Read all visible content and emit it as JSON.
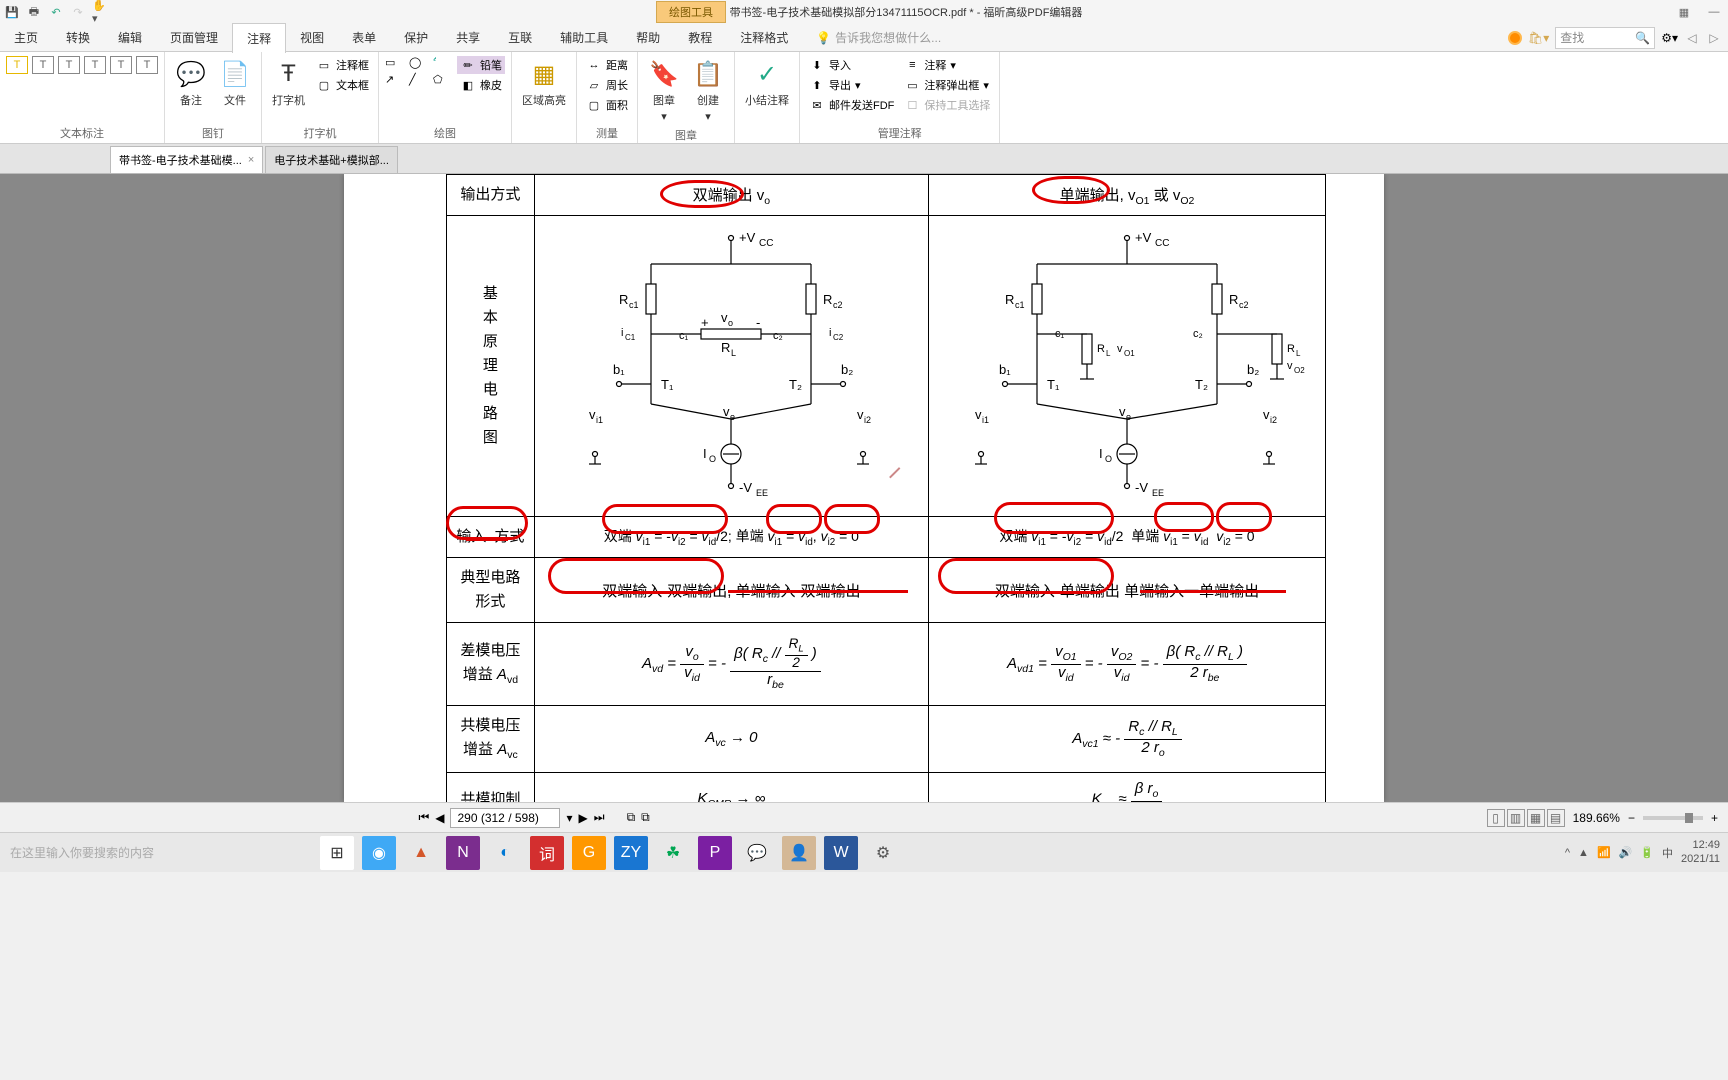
{
  "app": {
    "title": "带书签-电子技术基础模拟部分13471115OCR.pdf * - 福昕高级PDF编辑器",
    "context_tab": "绘图工具"
  },
  "menu": {
    "items": [
      "主页",
      "转换",
      "编辑",
      "页面管理",
      "注释",
      "视图",
      "表单",
      "保护",
      "共享",
      "互联",
      "辅助工具",
      "帮助",
      "教程",
      "注释格式"
    ],
    "active_index": 4,
    "tell_me": "告诉我您想做什么...",
    "search_placeholder": "查找"
  },
  "ribbon": {
    "g1": {
      "label": "文本标注"
    },
    "g2": {
      "label": "图钉",
      "b1": "备注",
      "b2": "文件"
    },
    "g3": {
      "label": "打字机",
      "b1": "打字机",
      "s1": "注释框",
      "s2": "文本框"
    },
    "g4": {
      "label": "绘图",
      "s1": "铅笔",
      "s2": "橡皮"
    },
    "g5": {
      "label": "",
      "b1": "区域高亮"
    },
    "g6": {
      "label": "测量",
      "s1": "距离",
      "s2": "周长",
      "s3": "面积"
    },
    "g7": {
      "label": "图章",
      "b1": "图章",
      "b2": "创建"
    },
    "g8": {
      "label": "",
      "b1": "小结注释"
    },
    "g9": {
      "label": "管理注释",
      "s1": "导入",
      "s2": "导出",
      "s3": "邮件发送FDF",
      "s4": "注释",
      "s5": "注释弹出框",
      "s6": "保持工具选择"
    }
  },
  "tabs": {
    "t1": "带书签-电子技术基础模...",
    "t2": "电子技术基础+模拟部..."
  },
  "doc": {
    "rows": {
      "r1": {
        "head": "输出方式",
        "c1_pre": "双端输出",
        "c1_suf": " v",
        "c1_sub": "o",
        "c2_pre": "单端输出",
        "c2_suf": ", v",
        "c2_sub1": "O1",
        "c2_mid": " 或 v",
        "c2_sub2": "O2"
      },
      "r2": {
        "head": "基本原理电路图"
      },
      "r3": {
        "head": "输入方式",
        "c1": "双端 v_{i1} = -v_{i2} = v_{id}/2; 单端 v_{i1} = v_{id}  v_{i2} = 0",
        "c2": "双端 v_{i1} = -v_{i2} = v_{id}/2  单端 v_{i1} = v_{id}  v_{i2} = 0"
      },
      "r4": {
        "head": "典型电路形式",
        "c1a": "双端输入-双端输出",
        "c1b": ", 单端输入-双端输出",
        "c2a": "双端输入-单端输出",
        "c2b": " 单端输入一单端输出"
      },
      "r5": {
        "head": "差模电压增益 A_{vd}"
      },
      "r6": {
        "head": "共模电压增益 A_{vc}",
        "c1": "A_{vc} → 0"
      },
      "r7": {
        "head": "共模抑制"
      }
    },
    "circuit": {
      "Vcc": "+V_{CC}",
      "Vee": "-V_{EE}",
      "Rc1": "R_{c1}",
      "Rc2": "R_{c2}",
      "RL": "R_{L}",
      "T1": "T₁",
      "T2": "T₂",
      "b1": "b₁",
      "b2": "b₂",
      "c1": "c₁",
      "c2": "c₂",
      "vo": "v_{o}",
      "ve": "v_{e}",
      "vi1": "v_{i1}",
      "vi2": "v_{i2}",
      "Io": "I_{O}",
      "iC1": "i_{C1}",
      "iC2": "i_{C2}",
      "vO1": "v_{O1}",
      "vO2": "v_{O2}"
    },
    "annotations": {
      "color": "#e00000"
    }
  },
  "status": {
    "page": "290 (312 / 598)",
    "zoom": "189.66%"
  },
  "taskbar": {
    "search": "在这里输入你要搜索的内容",
    "time": "12:49",
    "date": "2021/11",
    "apps": [
      {
        "bg": "#ffffff",
        "fg": "#333",
        "txt": "⊞"
      },
      {
        "bg": "#3fa9f5",
        "fg": "#fff",
        "txt": "◉"
      },
      {
        "bg": "#e8e8e8",
        "fg": "#d4572a",
        "txt": "▲"
      },
      {
        "bg": "#7b2d8e",
        "fg": "#fff",
        "txt": "N"
      },
      {
        "bg": "#e8e8e8",
        "fg": "#0078d4",
        "txt": "◐"
      },
      {
        "bg": "#d32f2f",
        "fg": "#fff",
        "txt": "词"
      },
      {
        "bg": "#ff9800",
        "fg": "#fff",
        "txt": "G"
      },
      {
        "bg": "#1976d2",
        "fg": "#fff",
        "txt": "ZY"
      },
      {
        "bg": "#e8e8e8",
        "fg": "#00a652",
        "txt": "☘"
      },
      {
        "bg": "#7b1fa2",
        "fg": "#fff",
        "txt": "P"
      },
      {
        "bg": "#e8e8e8",
        "fg": "#07c160",
        "txt": "💬"
      },
      {
        "bg": "#d4b896",
        "fg": "#333",
        "txt": "👤"
      },
      {
        "bg": "#2b579a",
        "fg": "#fff",
        "txt": "W"
      },
      {
        "bg": "#e8e8e8",
        "fg": "#555",
        "txt": "⚙"
      }
    ]
  }
}
